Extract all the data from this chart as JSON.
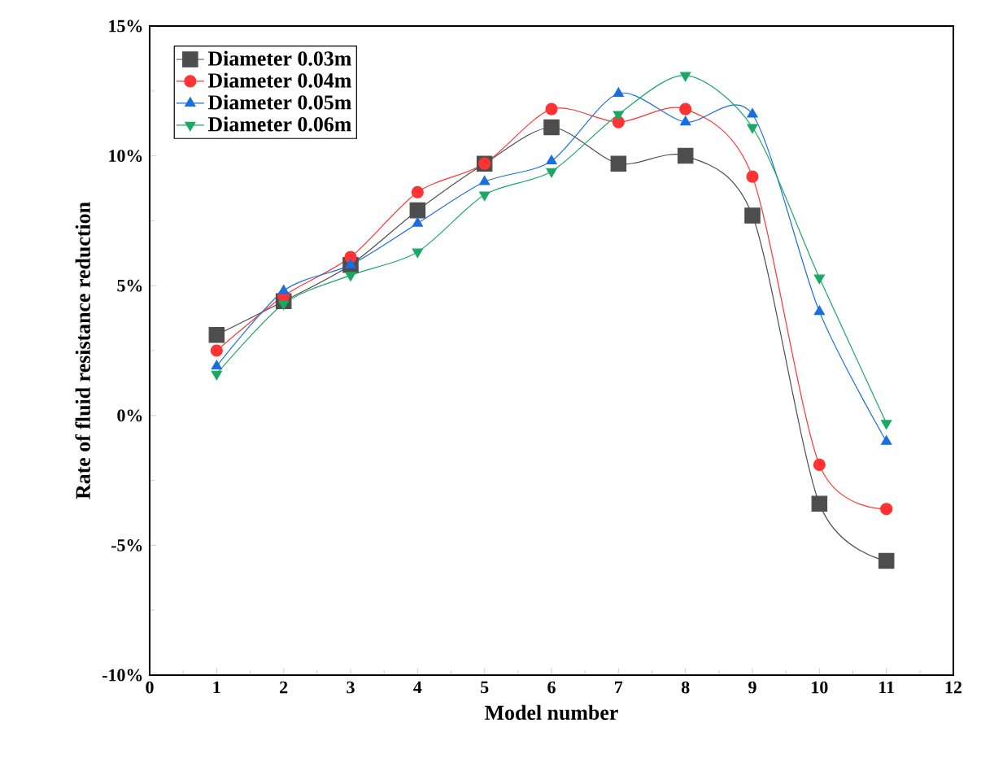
{
  "chart_data": {
    "type": "line",
    "xlabel": "Model number",
    "ylabel": "Rate of fluid resistance reduction",
    "x": [
      1,
      2,
      3,
      4,
      5,
      6,
      7,
      8,
      9,
      10,
      11
    ],
    "series": [
      {
        "name": "Diameter 0.03m",
        "color": "#4d4d4d",
        "marker": "square",
        "values": [
          3.1,
          4.4,
          5.8,
          7.9,
          9.7,
          11.1,
          9.7,
          10.0,
          7.7,
          -3.4,
          -5.6
        ]
      },
      {
        "name": "Diameter 0.04m",
        "color": "#ff3333",
        "marker": "circle",
        "values": [
          2.5,
          4.6,
          6.1,
          8.6,
          9.7,
          11.8,
          11.3,
          11.8,
          9.2,
          -1.9,
          -3.6
        ]
      },
      {
        "name": "Diameter 0.05m",
        "color": "#1a6fdf",
        "marker": "triangle",
        "values": [
          1.9,
          4.8,
          5.8,
          7.4,
          9.0,
          9.8,
          12.4,
          11.3,
          11.6,
          4.0,
          -1.0
        ]
      },
      {
        "name": "Diameter 0.06m",
        "color": "#1aa865",
        "marker": "triangle down",
        "values": [
          1.6,
          4.3,
          5.4,
          6.3,
          8.5,
          9.4,
          11.6,
          13.1,
          11.1,
          5.3,
          -0.3
        ]
      }
    ],
    "xlim": [
      0,
      12
    ],
    "xticks": [
      0,
      1,
      2,
      3,
      4,
      5,
      6,
      7,
      8,
      9,
      10,
      11,
      12
    ],
    "ylim": [
      -10,
      15
    ],
    "yticks": [
      {
        "value": -10,
        "label": "-10%"
      },
      {
        "value": -5,
        "label": "-5%"
      },
      {
        "value": 0,
        "label": "0%"
      },
      {
        "value": 5,
        "label": "5%"
      },
      {
        "value": 10,
        "label": "10%"
      },
      {
        "value": 15,
        "label": "15%"
      }
    ],
    "grid": false,
    "legend": "top left",
    "line_style": "solid"
  }
}
